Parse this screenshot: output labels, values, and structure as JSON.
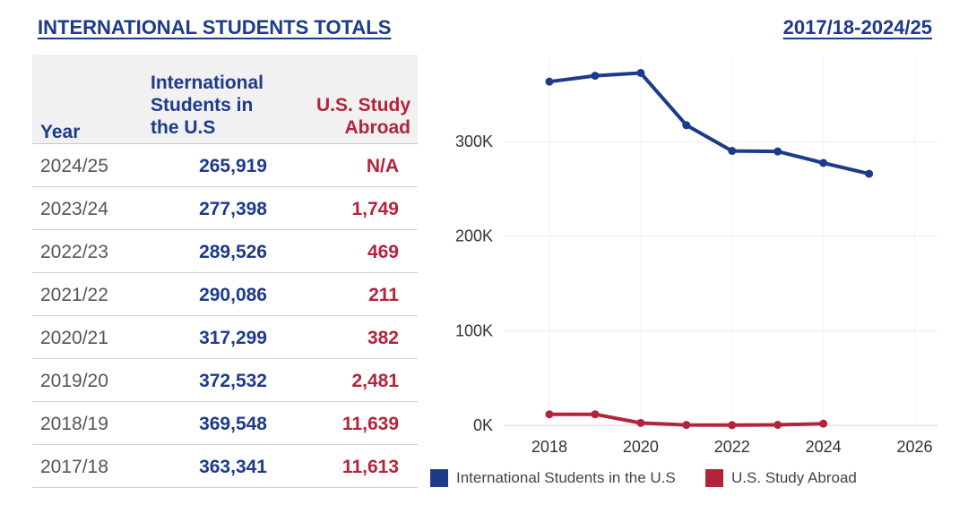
{
  "header": {
    "title": "INTERNATIONAL STUDENTS TOTALS",
    "range": "2017/18-2024/25"
  },
  "table": {
    "col_year": "Year",
    "col_intl": "International Students in the U.S",
    "col_abroad": "U.S. Study Abroad",
    "rows": [
      {
        "year": "2024/25",
        "intl": "265,919",
        "abroad": "N/A"
      },
      {
        "year": "2023/24",
        "intl": "277,398",
        "abroad": "1,749"
      },
      {
        "year": "2022/23",
        "intl": "289,526",
        "abroad": "469"
      },
      {
        "year": "2021/22",
        "intl": "290,086",
        "abroad": "211"
      },
      {
        "year": "2020/21",
        "intl": "317,299",
        "abroad": "382"
      },
      {
        "year": "2019/20",
        "intl": "372,532",
        "abroad": "2,481"
      },
      {
        "year": "2018/19",
        "intl": "369,548",
        "abroad": "11,639"
      },
      {
        "year": "2017/18",
        "intl": "363,341",
        "abroad": "11,613"
      }
    ]
  },
  "colors": {
    "navy": "#1e3a8a",
    "red": "#b3243b",
    "grid": "#ececec"
  },
  "chart_data": {
    "type": "line",
    "title": "",
    "xlabel": "",
    "ylabel": "",
    "xlim": [
      2017,
      2026.5
    ],
    "ylim": [
      0,
      390000
    ],
    "x_ticks": [
      2018,
      2020,
      2022,
      2024,
      2026
    ],
    "y_ticks": [
      0,
      100000,
      200000,
      300000
    ],
    "y_tick_labels": [
      "0K",
      "100K",
      "200K",
      "300K"
    ],
    "grid": true,
    "legend": "bottom",
    "series": [
      {
        "name": "International Students in the U.S",
        "color": "#1e3a8a",
        "x": [
          2018,
          2019,
          2020,
          2021,
          2022,
          2023,
          2024,
          2025
        ],
        "y": [
          363341,
          369548,
          372532,
          317299,
          290086,
          289526,
          277398,
          265919
        ]
      },
      {
        "name": "U.S. Study Abroad",
        "color": "#b3243b",
        "x": [
          2018,
          2019,
          2020,
          2021,
          2022,
          2023,
          2024
        ],
        "y": [
          11613,
          11639,
          2481,
          382,
          211,
          469,
          1749
        ]
      }
    ]
  }
}
